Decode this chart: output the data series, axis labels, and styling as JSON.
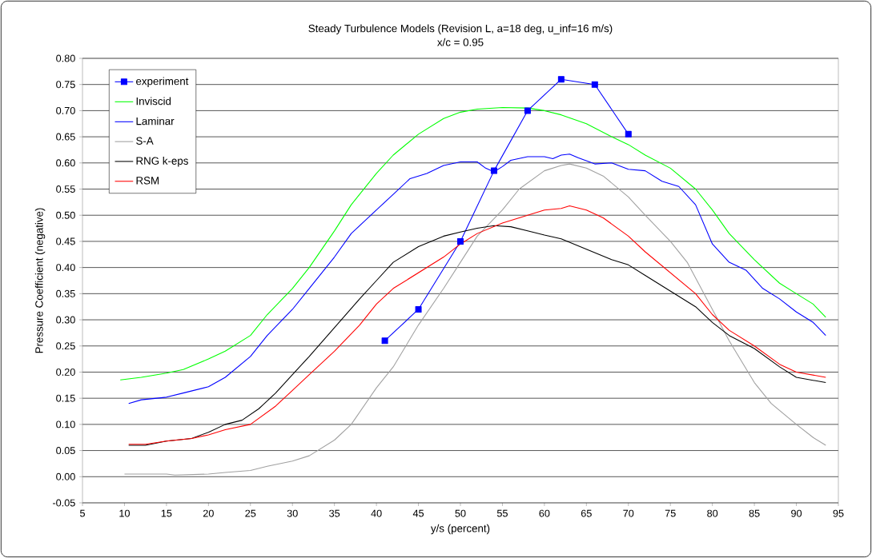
{
  "chart_data": {
    "type": "line",
    "title": "Steady Turbulence Models (Revision L, a=18 deg, u_inf=16 m/s)",
    "subtitle": "x/c = 0.95",
    "xlabel": "y/s (percent)",
    "ylabel": "Pressure Coefficient (negative)",
    "xlim": [
      5,
      95
    ],
    "xticks": [
      5,
      10,
      15,
      20,
      25,
      30,
      35,
      40,
      45,
      50,
      55,
      60,
      65,
      70,
      75,
      80,
      85,
      90,
      95
    ],
    "ylim": [
      -0.05,
      0.8
    ],
    "yticks": [
      {
        "value": -0.05,
        "label": "-0.05"
      },
      {
        "value": 0,
        "label": "0.00"
      },
      {
        "value": 0.05,
        "label": "0.05"
      },
      {
        "value": 0.1,
        "label": "0.10"
      },
      {
        "value": 0.15,
        "label": "0.15"
      },
      {
        "value": 0.2,
        "label": "0.20"
      },
      {
        "value": 0.25,
        "label": "0.25"
      },
      {
        "value": 0.3,
        "label": "0.30"
      },
      {
        "value": 0.35,
        "label": "0.35"
      },
      {
        "value": 0.4,
        "label": "0.40"
      },
      {
        "value": 0.45,
        "label": "0.45"
      },
      {
        "value": 0.5,
        "label": "0.50"
      },
      {
        "value": 0.55,
        "label": "0.55"
      },
      {
        "value": 0.6,
        "label": "0.60"
      },
      {
        "value": 0.65,
        "label": "0.65"
      },
      {
        "value": 0.7,
        "label": "0.70"
      },
      {
        "value": 0.75,
        "label": "0.75"
      },
      {
        "value": 0.8,
        "label": "0.80"
      }
    ],
    "grid": "y",
    "legend": "top left",
    "series": [
      {
        "name": "experiment",
        "color": "#0000ff",
        "marker": "square",
        "x": [
          41,
          45,
          50,
          54,
          58,
          62,
          66,
          70
        ],
        "values": [
          0.26,
          0.32,
          0.45,
          0.585,
          0.7,
          0.76,
          0.75,
          0.655
        ]
      },
      {
        "name": "Inviscid",
        "color": "#00ff00",
        "marker": "none",
        "x": [
          9.5,
          12,
          15,
          17,
          20,
          22,
          25,
          27,
          30,
          32,
          35,
          37,
          40,
          42,
          45,
          48,
          50,
          52,
          55,
          58,
          60,
          62,
          65,
          68,
          70,
          72,
          75,
          78,
          80,
          82,
          85,
          88,
          90,
          92,
          93.5
        ],
        "values": [
          0.185,
          0.19,
          0.198,
          0.205,
          0.225,
          0.24,
          0.27,
          0.31,
          0.36,
          0.4,
          0.47,
          0.52,
          0.58,
          0.615,
          0.655,
          0.685,
          0.697,
          0.703,
          0.706,
          0.705,
          0.7,
          0.692,
          0.675,
          0.65,
          0.635,
          0.615,
          0.59,
          0.55,
          0.51,
          0.465,
          0.415,
          0.37,
          0.35,
          0.33,
          0.305
        ]
      },
      {
        "name": "Laminar",
        "color": "#0000ff",
        "marker": "none",
        "x": [
          10.5,
          12,
          15,
          17,
          20,
          22,
          25,
          27,
          30,
          32,
          35,
          37,
          40,
          42,
          44,
          46,
          48,
          50,
          52,
          53,
          54,
          55,
          56,
          58,
          60,
          61,
          62,
          63,
          64,
          66,
          68,
          70,
          72,
          74,
          76,
          78,
          80,
          82,
          84,
          86,
          88,
          90,
          92,
          93.5
        ],
        "values": [
          0.14,
          0.147,
          0.152,
          0.16,
          0.172,
          0.19,
          0.23,
          0.27,
          0.32,
          0.36,
          0.42,
          0.465,
          0.51,
          0.54,
          0.57,
          0.58,
          0.595,
          0.602,
          0.602,
          0.59,
          0.583,
          0.593,
          0.605,
          0.612,
          0.612,
          0.608,
          0.615,
          0.617,
          0.61,
          0.598,
          0.6,
          0.588,
          0.585,
          0.565,
          0.555,
          0.52,
          0.445,
          0.41,
          0.395,
          0.36,
          0.34,
          0.315,
          0.295,
          0.27
        ]
      },
      {
        "name": "S-A",
        "color": "#a0a0a0",
        "marker": "none",
        "x": [
          10,
          15,
          16,
          20,
          22,
          25,
          27,
          30,
          32,
          35,
          37,
          40,
          42,
          45,
          48,
          50,
          52,
          55,
          57,
          60,
          62,
          63,
          65,
          67,
          70,
          72,
          75,
          77,
          80,
          82,
          85,
          87,
          90,
          92,
          93.5
        ],
        "values": [
          0.005,
          0.005,
          0.003,
          0.005,
          0.008,
          0.012,
          0.02,
          0.03,
          0.04,
          0.07,
          0.1,
          0.17,
          0.21,
          0.29,
          0.36,
          0.41,
          0.46,
          0.51,
          0.55,
          0.585,
          0.595,
          0.598,
          0.59,
          0.575,
          0.535,
          0.5,
          0.45,
          0.41,
          0.32,
          0.26,
          0.18,
          0.14,
          0.1,
          0.075,
          0.06
        ]
      },
      {
        "name": "RNG k-eps",
        "color": "#000000",
        "marker": "none",
        "x": [
          10.5,
          12.5,
          15,
          18,
          20,
          22,
          24,
          26,
          28,
          30,
          32,
          35,
          38,
          40,
          42,
          45,
          48,
          50,
          52,
          54,
          56,
          58,
          60,
          62,
          65,
          68,
          70,
          72,
          75,
          78,
          80,
          82,
          85,
          88,
          90,
          93.5
        ],
        "values": [
          0.06,
          0.06,
          0.068,
          0.073,
          0.085,
          0.1,
          0.108,
          0.13,
          0.16,
          0.195,
          0.23,
          0.285,
          0.34,
          0.375,
          0.41,
          0.44,
          0.46,
          0.468,
          0.475,
          0.48,
          0.478,
          0.47,
          0.462,
          0.455,
          0.435,
          0.415,
          0.405,
          0.385,
          0.355,
          0.325,
          0.295,
          0.27,
          0.245,
          0.21,
          0.19,
          0.18
        ]
      },
      {
        "name": "RSM",
        "color": "#ff0000",
        "marker": "none",
        "x": [
          10.5,
          12.5,
          15,
          18,
          20,
          22,
          25,
          28,
          30,
          32,
          35,
          38,
          40,
          42,
          45,
          48,
          50,
          52,
          55,
          58,
          60,
          62,
          63,
          65,
          67,
          70,
          72,
          75,
          78,
          80,
          82,
          85,
          88,
          90,
          93.5
        ],
        "values": [
          0.062,
          0.062,
          0.068,
          0.073,
          0.08,
          0.09,
          0.1,
          0.135,
          0.165,
          0.195,
          0.24,
          0.29,
          0.33,
          0.36,
          0.39,
          0.42,
          0.445,
          0.465,
          0.485,
          0.5,
          0.51,
          0.513,
          0.518,
          0.51,
          0.495,
          0.46,
          0.43,
          0.39,
          0.35,
          0.31,
          0.28,
          0.25,
          0.215,
          0.2,
          0.19
        ]
      }
    ]
  }
}
